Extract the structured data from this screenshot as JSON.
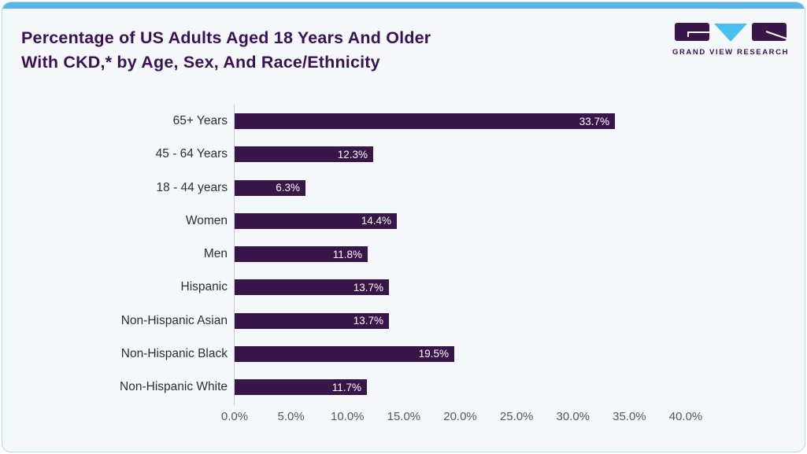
{
  "header": {
    "title_line1": "Percentage of US Adults Aged 18 Years And Older",
    "title_line2": "With CKD,* by Age, Sex, And Race/Ethnicity"
  },
  "logo": {
    "brand_text": "GRAND VIEW RESEARCH"
  },
  "colors": {
    "bar": "#38164a",
    "title": "#3b1056",
    "accent_blue": "#58b7e4",
    "triangle_blue": "#49c0f0",
    "card_bg": "#f4f8fb",
    "card_border": "#b7d9ed",
    "tick_text": "#54575b",
    "category_text": "#2d2d2d",
    "value_text": "#ffffff"
  },
  "chart_data": {
    "type": "bar",
    "orientation": "horizontal",
    "title": "Percentage of US Adults Aged 18 Years And Older With CKD,* by Age, Sex, And Race/Ethnicity",
    "categories": [
      "65+ Years",
      "45 - 64 Years",
      "18 - 44 years",
      "Women",
      "Men",
      "Hispanic",
      "Non-Hispanic Asian",
      "Non-Hispanic Black",
      "Non-Hispanic White"
    ],
    "values": [
      33.7,
      12.3,
      6.3,
      14.4,
      11.8,
      13.7,
      13.7,
      19.5,
      11.7
    ],
    "value_labels": [
      "33.7%",
      "12.3%",
      "6.3%",
      "14.4%",
      "11.8%",
      "13.7%",
      "13.7%",
      "19.5%",
      "11.7%"
    ],
    "x_ticks": [
      "0.0%",
      "5.0%",
      "10.0%",
      "15.0%",
      "20.0%",
      "25.0%",
      "30.0%",
      "35.0%",
      "40.0%"
    ],
    "x_tick_values": [
      0,
      5,
      10,
      15,
      20,
      25,
      30,
      35,
      40
    ],
    "xlim": [
      0,
      40
    ],
    "xlabel": "",
    "ylabel": "",
    "grid": false,
    "legend": false,
    "value_labels_position": "inside-end"
  }
}
